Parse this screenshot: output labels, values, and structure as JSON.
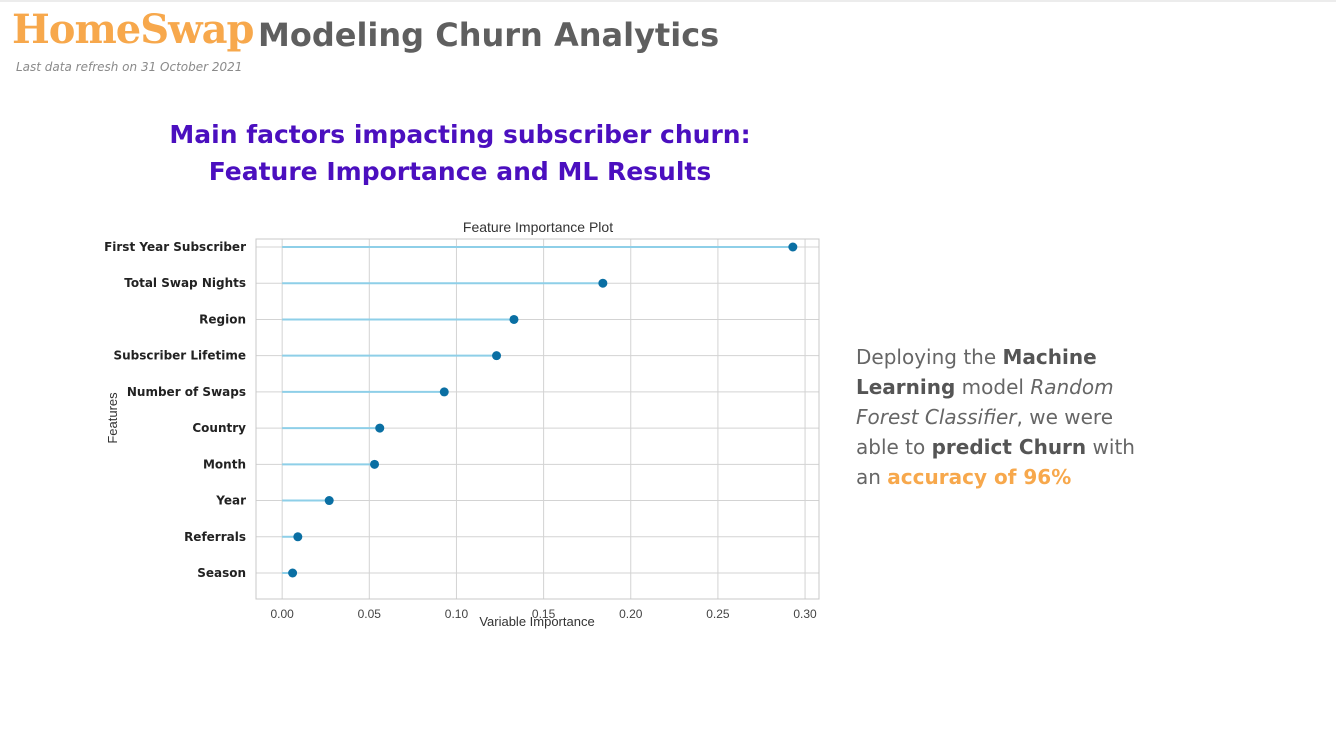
{
  "header": {
    "logo_text": "HomeSwap",
    "title": "Modeling Churn Analytics",
    "refresh_note": "Last data refresh on 31 October 2021"
  },
  "section": {
    "title_line1": "Main factors impacting subscriber churn:",
    "title_line2": "Feature Importance and ML Results"
  },
  "insight": {
    "t1": "Deploying the ",
    "b1": "Machine Learning",
    "t2": " model ",
    "i1": "Random Forest Classifier",
    "t3": ", we were able to ",
    "b2": "predict Churn",
    "t4": " with an ",
    "h1": "accuracy of 96%"
  },
  "colors": {
    "brand": "#f7a84c",
    "section_title": "#4b0fbf",
    "stem": "#8ecfe8",
    "dot": "#0a6fa3",
    "grid": "#d3d3d3"
  },
  "chart_data": {
    "type": "lollipop",
    "title": "Feature Importance Plot",
    "xlabel": "Variable Importance",
    "ylabel": "Features",
    "xlim": [
      -0.015,
      0.308
    ],
    "xticks": [
      0.0,
      0.05,
      0.1,
      0.15,
      0.2,
      0.25,
      0.3
    ],
    "xtick_labels": [
      "0.00",
      "0.05",
      "0.10",
      "0.15",
      "0.20",
      "0.25",
      "0.30"
    ],
    "grid": true,
    "categories": [
      "First Year Subscriber",
      "Total Swap Nights",
      "Region",
      "Subscriber Lifetime",
      "Number of Swaps",
      "Country",
      "Month",
      "Year",
      "Referrals",
      "Season"
    ],
    "values": [
      0.293,
      0.184,
      0.133,
      0.123,
      0.093,
      0.056,
      0.053,
      0.027,
      0.009,
      0.006
    ]
  }
}
